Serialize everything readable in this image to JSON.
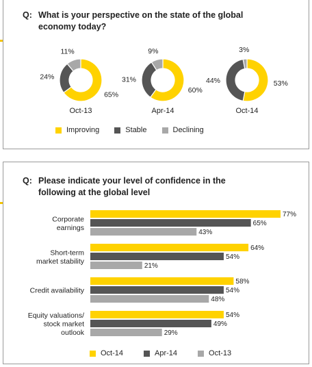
{
  "top_panel": {
    "prefix": "Q:",
    "question": "What is your perspective on the state of the global economy today?"
  },
  "bottom_panel": {
    "prefix": "Q:",
    "question": "Please indicate your level of confidence in the following at the global level"
  },
  "colors": {
    "yellow": "#ffd200",
    "dark": "#555555",
    "light": "#a8a8a8",
    "text": "#222222"
  },
  "chart_data": [
    {
      "type": "pie",
      "style": "donut",
      "legend": [
        "Improving",
        "Stable",
        "Declining"
      ],
      "legend_placement": "bottom",
      "charts": [
        {
          "label": "Oct-13",
          "values": [
            65,
            24,
            11
          ]
        },
        {
          "label": "Apr-14",
          "values": [
            60,
            31,
            9
          ]
        },
        {
          "label": "Oct-14",
          "values": [
            53,
            44,
            3
          ]
        }
      ]
    },
    {
      "type": "bar",
      "orientation": "horizontal",
      "categories": [
        [
          "Corporate",
          "earnings"
        ],
        [
          "Short-term",
          "market stability"
        ],
        [
          "Credit availability"
        ],
        [
          "Equity valuations/",
          "stock market",
          "outlook"
        ]
      ],
      "series": [
        {
          "name": "Oct-14",
          "values": [
            77,
            64,
            58,
            54
          ]
        },
        {
          "name": "Apr-14",
          "values": [
            65,
            54,
            54,
            49
          ]
        },
        {
          "name": "Oct-13",
          "values": [
            43,
            21,
            48,
            29
          ]
        }
      ],
      "value_suffix": "%",
      "xlim": [
        0,
        77
      ],
      "legend_placement": "bottom"
    }
  ]
}
